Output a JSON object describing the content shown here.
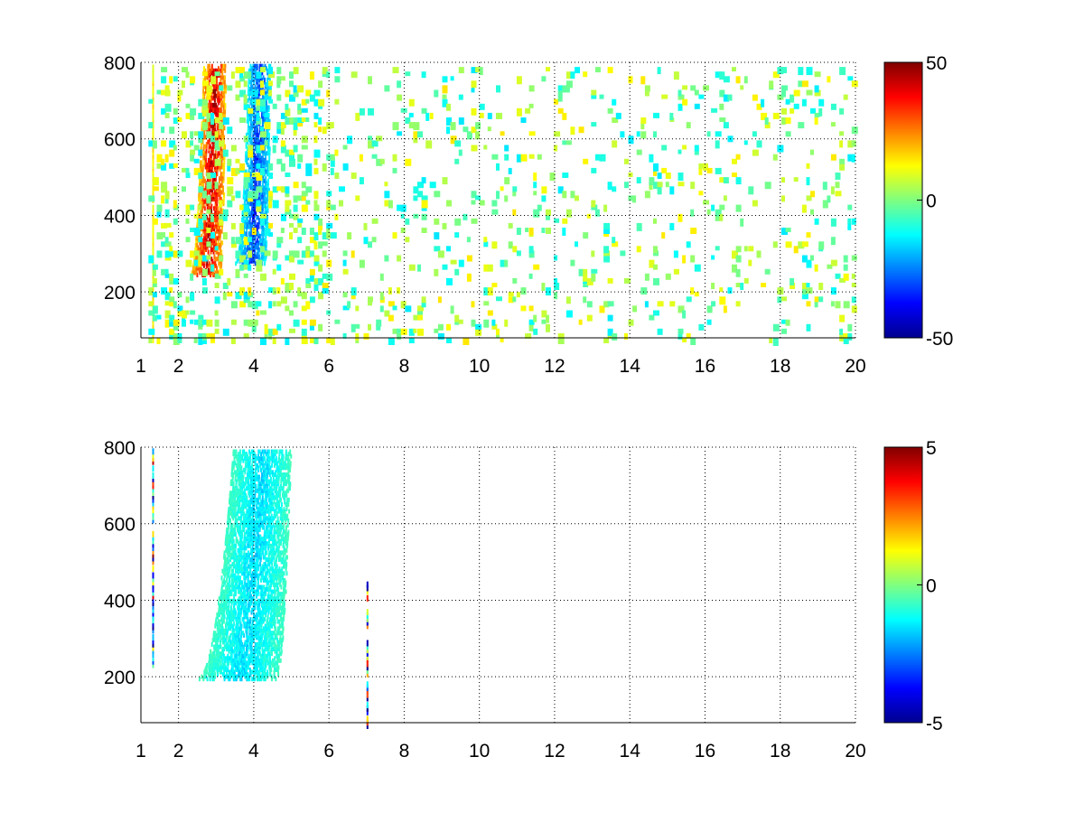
{
  "chart_data": [
    {
      "type": "heatmap",
      "title": "",
      "xlabel": "",
      "ylabel": "",
      "xlim": [
        1,
        20
      ],
      "ylim": [
        80,
        800
      ],
      "grid": true,
      "x_ticks": [
        1,
        2,
        4,
        6,
        8,
        10,
        12,
        14,
        16,
        18,
        20
      ],
      "y_ticks": [
        200,
        400,
        600,
        800
      ],
      "colorbar": {
        "colormap": "jet",
        "range": [
          -50,
          50
        ],
        "ticks": [
          50,
          0,
          -50
        ]
      },
      "features": [
        {
          "label": "positive band",
          "x_start": 2.3,
          "x_end": 3.1,
          "y_start": 250,
          "y_end": 800,
          "value": 40
        },
        {
          "label": "negative band",
          "x_start": 3.5,
          "x_end": 4.3,
          "y_start": 280,
          "y_end": 800,
          "value": -30
        },
        {
          "label": "vertical streak",
          "x": 1.3,
          "y_start": 80,
          "y_end": 800,
          "value": 15
        },
        {
          "label": "scattered noise",
          "x_start": 1,
          "x_end": 20,
          "y_start": 80,
          "y_end": 800,
          "value_range": [
            -15,
            15
          ]
        }
      ]
    },
    {
      "type": "heatmap",
      "title": "",
      "xlabel": "",
      "ylabel": "",
      "xlim": [
        1,
        20
      ],
      "ylim": [
        80,
        800
      ],
      "grid": true,
      "x_ticks": [
        1,
        2,
        4,
        6,
        8,
        10,
        12,
        14,
        16,
        18,
        20
      ],
      "y_ticks": [
        200,
        400,
        600,
        800
      ],
      "colorbar": {
        "colormap": "jet",
        "range": [
          -5,
          5
        ],
        "ticks": [
          5,
          0,
          -5
        ]
      },
      "features": [
        {
          "label": "cyan band",
          "x_start": 2.5,
          "x_end": 4.6,
          "y_start": 200,
          "y_end": 800,
          "value": -1.5
        },
        {
          "label": "vertical streak",
          "x": 1.3,
          "y_start": 230,
          "y_end": 800,
          "value_range": [
            -5,
            5
          ]
        },
        {
          "label": "vertical streak",
          "x": 7.0,
          "y_start": 80,
          "y_end": 450,
          "value_range": [
            -5,
            4
          ]
        }
      ]
    }
  ]
}
